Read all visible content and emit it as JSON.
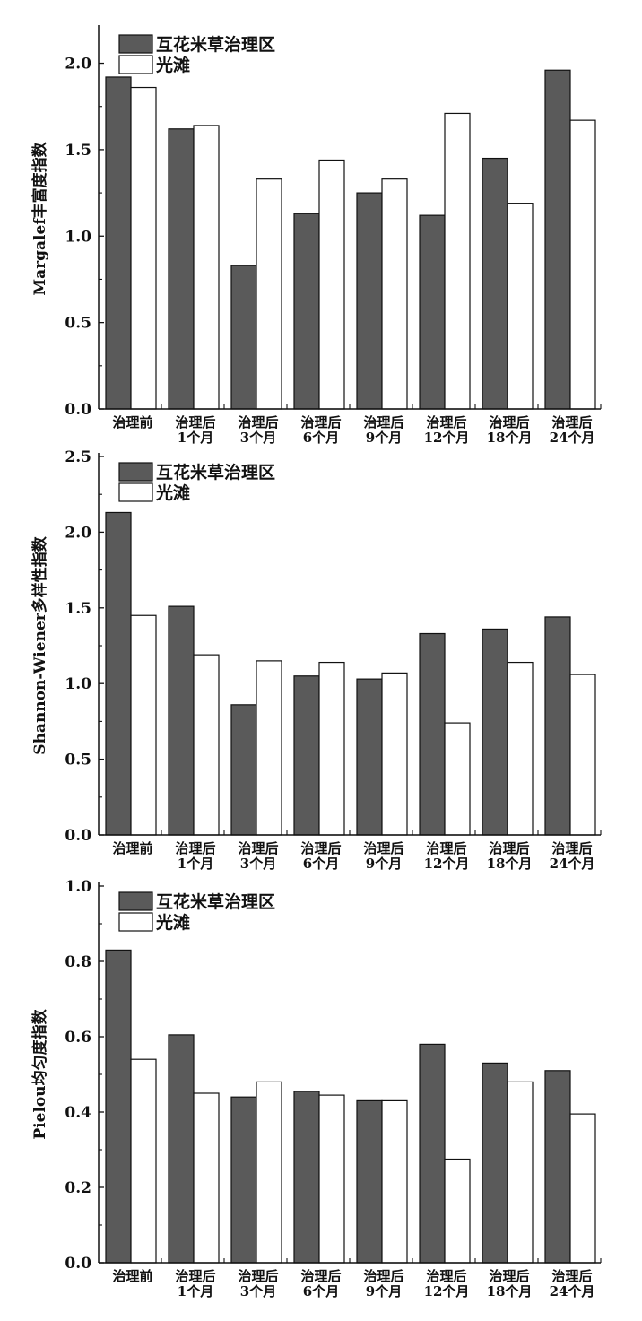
{
  "colors": {
    "series_dark": "#5a5a5a",
    "series_light": "#ffffff",
    "stroke": "#111111"
  },
  "chart_data": [
    {
      "type": "bar",
      "ylabel": "Margalef丰富度指数",
      "ylim": [
        0,
        2.2
      ],
      "yticks": [
        0.0,
        0.5,
        1.0,
        1.5,
        2.0
      ],
      "ytick_labels": [
        "0.0",
        "0.5",
        "1.0",
        "1.5",
        "2.0"
      ],
      "categories": [
        [
          "治理前"
        ],
        [
          "治理后",
          "1个月"
        ],
        [
          "治理后",
          "3个月"
        ],
        [
          "治理后",
          "6个月"
        ],
        [
          "治理后",
          "9个月"
        ],
        [
          "治理后",
          "12个月"
        ],
        [
          "治理后",
          "18个月"
        ],
        [
          "治理后",
          "24个月"
        ]
      ],
      "series": [
        {
          "name": "互花米草治理区",
          "color": "#5a5a5a",
          "values": [
            1.92,
            1.62,
            0.83,
            1.13,
            1.25,
            1.12,
            1.45,
            1.96
          ]
        },
        {
          "name": "光滩",
          "color": "#ffffff",
          "values": [
            1.86,
            1.64,
            1.33,
            1.44,
            1.33,
            1.71,
            1.19,
            1.67
          ]
        }
      ],
      "legend": "top-left",
      "grid": false
    },
    {
      "type": "bar",
      "ylabel": "Shannon-Wiener多样性指数",
      "ylim": [
        0,
        2.5
      ],
      "yticks": [
        0.0,
        0.5,
        1.0,
        1.5,
        2.0,
        2.5
      ],
      "ytick_labels": [
        "0.0",
        "0.5",
        "1.0",
        "1.5",
        "2.0",
        "2.5"
      ],
      "categories": [
        [
          "治理前"
        ],
        [
          "治理后",
          "1个月"
        ],
        [
          "治理后",
          "3个月"
        ],
        [
          "治理后",
          "6个月"
        ],
        [
          "治理后",
          "9个月"
        ],
        [
          "治理后",
          "12个月"
        ],
        [
          "治理后",
          "18个月"
        ],
        [
          "治理后",
          "24个月"
        ]
      ],
      "series": [
        {
          "name": "互花米草治理区",
          "color": "#5a5a5a",
          "values": [
            2.13,
            1.51,
            0.86,
            1.05,
            1.03,
            1.33,
            1.36,
            1.44
          ]
        },
        {
          "name": "光滩",
          "color": "#ffffff",
          "values": [
            1.45,
            1.19,
            1.15,
            1.14,
            1.07,
            0.74,
            1.14,
            1.06
          ]
        }
      ],
      "legend": "top-left",
      "grid": false
    },
    {
      "type": "bar",
      "ylabel": "Pielou均匀度指数",
      "ylim": [
        0,
        1.0
      ],
      "yticks": [
        0.0,
        0.2,
        0.4,
        0.6,
        0.8,
        1.0
      ],
      "ytick_labels": [
        "0.0",
        "0.2",
        "0.4",
        "0.6",
        "0.8",
        "1.0"
      ],
      "categories": [
        [
          "治理前"
        ],
        [
          "治理后",
          "1个月"
        ],
        [
          "治理后",
          "3个月"
        ],
        [
          "治理后",
          "6个月"
        ],
        [
          "治理后",
          "9个月"
        ],
        [
          "治理后",
          "12个月"
        ],
        [
          "治理后",
          "18个月"
        ],
        [
          "治理后",
          "24个月"
        ]
      ],
      "series": [
        {
          "name": "互花米草治理区",
          "color": "#5a5a5a",
          "values": [
            0.83,
            0.605,
            0.44,
            0.455,
            0.43,
            0.58,
            0.53,
            0.51
          ]
        },
        {
          "name": "光滩",
          "color": "#ffffff",
          "values": [
            0.54,
            0.45,
            0.48,
            0.445,
            0.43,
            0.275,
            0.48,
            0.395
          ]
        }
      ],
      "legend": "top-left",
      "grid": false
    }
  ]
}
